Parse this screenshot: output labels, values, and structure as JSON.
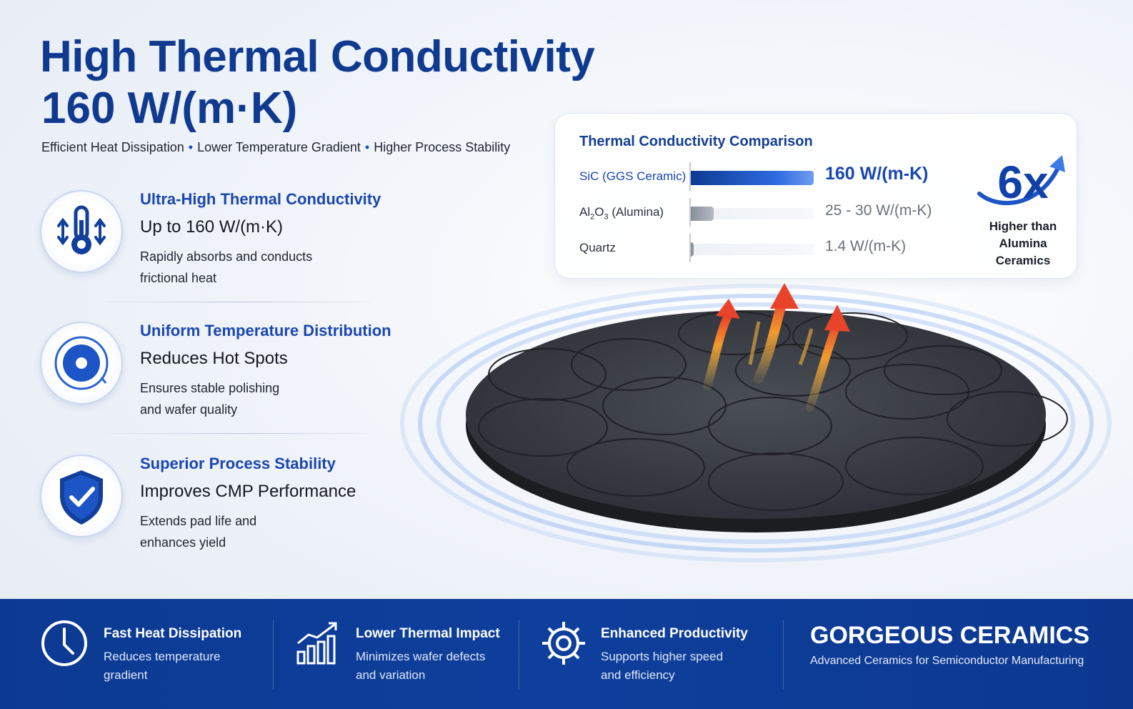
{
  "header": {
    "title_line1": "High Thermal Conductivity",
    "title_line2": "160 W/(m·K)",
    "tagline": [
      "Efficient Heat Dissipation",
      "Lower Temperature Gradient",
      "Higher Process Stability"
    ]
  },
  "features": [
    {
      "icon": "thermometer-icon",
      "heading": "Ultra-High Thermal Conductivity",
      "subheading": "Up to 160 W/(m·K)",
      "desc_line1": "Rapidly absorbs and conducts",
      "desc_line2": "frictional heat"
    },
    {
      "icon": "target-icon",
      "heading": "Uniform Temperature Distribution",
      "subheading": "Reduces Hot Spots",
      "desc_line1": "Ensures stable polishing",
      "desc_line2": "and wafer quality"
    },
    {
      "icon": "shield-check-icon",
      "heading": "Superior Process Stability",
      "subheading": "Improves CMP Performance",
      "desc_line1": "Extends pad life and",
      "desc_line2": "enhances yield"
    }
  ],
  "comparison": {
    "title": "Thermal Conductivity Comparison",
    "rows": [
      {
        "label": "SiC (GGS Ceramic)",
        "value_text": "160 W/(m-K)",
        "value": 160,
        "color": "#0e3f9c"
      },
      {
        "label_prefix": "Al",
        "label_sub1": "2",
        "label_mid": "O",
        "label_sub2": "3",
        "label_suffix": " (Alumina)",
        "value_text": "25 - 30 W/(m-K)",
        "value": 30,
        "color": "#9da3ad"
      },
      {
        "label": "Quartz",
        "value_text": "1.4 W/(m-K)",
        "value": 1.4,
        "color": "#8e949e"
      }
    ],
    "multiplier": "6x",
    "multiplier_caption_line1": "Higher than",
    "multiplier_caption_line2": "Alumina Ceramics"
  },
  "footer": {
    "items": [
      {
        "icon": "clock-icon",
        "title": "Fast Heat Dissipation",
        "line1": "Reduces temperature",
        "line2": "gradient"
      },
      {
        "icon": "bar-chart-icon",
        "title": "Lower Thermal Impact",
        "line1": "Minimizes wafer defects",
        "line2": "and variation"
      },
      {
        "icon": "gear-icon",
        "title": "Enhanced Productivity",
        "line1": "Supports higher speed",
        "line2": "and efficiency"
      }
    ],
    "brand": "GORGEOUS CERAMICS",
    "brand_tagline": "Advanced Ceramics for Semiconductor Manufacturing"
  },
  "colors": {
    "primary": "#0f3a8f",
    "accent": "#1a47b0",
    "footer_bg": "#0e3f9c",
    "heat": "#e8442a"
  }
}
